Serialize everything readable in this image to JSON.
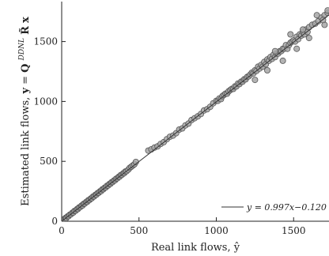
{
  "chart_data": {
    "type": "scatter",
    "title": "",
    "xlabel": "Real link flows, ŷ",
    "ylabel": "Estimated link flows, y = Q^{DDNL} R̃x",
    "ylabel_parts": {
      "prefix": "Estimated link flows, ",
      "var_y": "y",
      "equals": " = ",
      "Q": "Q",
      "sup": "DDNL",
      "R": "R̃",
      "x": "x"
    },
    "xlim": [
      0,
      1750
    ],
    "ylim": [
      0,
      1780
    ],
    "xticks": [
      0,
      500,
      1000,
      1500
    ],
    "xtick_labels": [
      "0",
      "500",
      "1000",
      "1500"
    ],
    "yticks": [
      0,
      500,
      1000,
      1500
    ],
    "ytick_labels": [
      "0",
      "500",
      "1000",
      "1500"
    ],
    "grid": false,
    "legend_placement": "bottom-right",
    "series": [
      {
        "name": "",
        "kind": "points",
        "color": "#a6a6a6",
        "edge_color": "#555555",
        "x": [
          5,
          10,
          14,
          20,
          25,
          30,
          38,
          45,
          52,
          60,
          68,
          75,
          82,
          90,
          98,
          105,
          112,
          120,
          128,
          135,
          142,
          150,
          158,
          165,
          172,
          180,
          188,
          195,
          202,
          210,
          218,
          225,
          232,
          240,
          248,
          255,
          262,
          270,
          278,
          285,
          292,
          300,
          308,
          315,
          322,
          330,
          338,
          345,
          352,
          360,
          368,
          375,
          382,
          390,
          398,
          405,
          412,
          420,
          430,
          440,
          450,
          460,
          470,
          480,
          560,
          580,
          600,
          620,
          640,
          660,
          680,
          700,
          720,
          740,
          760,
          780,
          800,
          820,
          840,
          860,
          880,
          900,
          920,
          940,
          960,
          980,
          1000,
          1010,
          1020,
          1030,
          1040,
          1050,
          1060,
          1070,
          1080,
          1090,
          1100,
          1110,
          1120,
          1130,
          1140,
          1150,
          1160,
          1170,
          1180,
          1190,
          1200,
          1210,
          1220,
          1230,
          1240,
          1250,
          1260,
          1270,
          1280,
          1290,
          1300,
          1310,
          1320,
          1330,
          1340,
          1350,
          1360,
          1370,
          1380,
          1390,
          1400,
          1410,
          1420,
          1430,
          1440,
          1450,
          1460,
          1470,
          1480,
          1490,
          1500,
          1510,
          1520,
          1530,
          1540,
          1550,
          1560,
          1570,
          1580,
          1590,
          1600,
          1620,
          1640,
          1660,
          1680,
          1700,
          1720,
          1740,
          1250,
          1330,
          1380,
          1430,
          1480,
          1520,
          1560,
          1600,
          1650,
          1700,
          1720,
          1690
        ],
        "y": [
          8,
          12,
          10,
          22,
          28,
          26,
          40,
          42,
          55,
          58,
          70,
          72,
          85,
          88,
          100,
          102,
          115,
          118,
          130,
          132,
          145,
          148,
          160,
          162,
          175,
          178,
          190,
          192,
          205,
          208,
          220,
          222,
          235,
          238,
          250,
          252,
          265,
          268,
          280,
          282,
          295,
          298,
          310,
          312,
          325,
          328,
          340,
          342,
          355,
          358,
          370,
          372,
          385,
          388,
          400,
          402,
          415,
          418,
          430,
          445,
          455,
          465,
          475,
          495,
          590,
          600,
          615,
          625,
          645,
          660,
          685,
          705,
          715,
          735,
          765,
          775,
          800,
          815,
          845,
          860,
          875,
          895,
          925,
          935,
          955,
          985,
          1005,
          1005,
          1025,
          1020,
          1045,
          1055,
          1065,
          1065,
          1085,
          1095,
          1105,
          1105,
          1125,
          1125,
          1150,
          1145,
          1165,
          1165,
          1185,
          1185,
          1205,
          1210,
          1225,
          1240,
          1235,
          1260,
          1255,
          1290,
          1275,
          1305,
          1290,
          1330,
          1310,
          1350,
          1340,
          1370,
          1355,
          1390,
          1370,
          1400,
          1400,
          1420,
          1420,
          1440,
          1440,
          1470,
          1440,
          1470,
          1490,
          1500,
          1510,
          1500,
          1540,
          1520,
          1560,
          1550,
          1580,
          1560,
          1600,
          1580,
          1620,
          1640,
          1650,
          1670,
          1700,
          1720,
          1740,
          1750,
          1180,
          1260,
          1420,
          1340,
          1560,
          1440,
          1600,
          1530,
          1720,
          1640,
          1760,
          1680
        ]
      },
      {
        "name": "y = 0.997x−0.120",
        "kind": "fit_line",
        "color": "#333333",
        "slope": 0.997,
        "intercept": -0.12
      }
    ]
  }
}
